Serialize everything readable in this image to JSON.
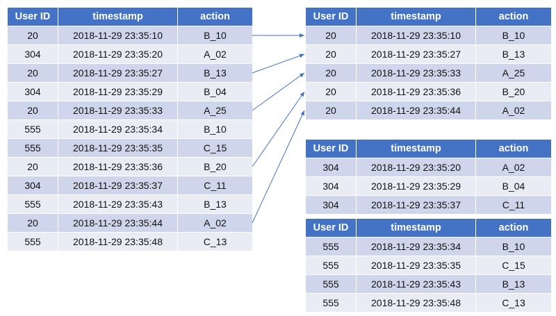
{
  "headers": [
    "User ID",
    "timestamp",
    "action"
  ],
  "tables": [
    {
      "rows": [
        [
          "20",
          "2018-11-29 23:35:10",
          "B_10"
        ],
        [
          "304",
          "2018-11-29 23:35:20",
          "A_02"
        ],
        [
          "20",
          "2018-11-29 23:35:27",
          "B_13"
        ],
        [
          "304",
          "2018-11-29 23:35:29",
          "B_04"
        ],
        [
          "20",
          "2018-11-29 23:35:33",
          "A_25"
        ],
        [
          "555",
          "2018-11-29 23:35:34",
          "B_10"
        ],
        [
          "555",
          "2018-11-29 23:35:35",
          "C_15"
        ],
        [
          "20",
          "2018-11-29 23:35:36",
          "B_20"
        ],
        [
          "304",
          "2018-11-29 23:35:37",
          "C_11"
        ],
        [
          "555",
          "2018-11-29 23:35:43",
          "B_13"
        ],
        [
          "20",
          "2018-11-29 23:35:44",
          "A_02"
        ],
        [
          "555",
          "2018-11-29 23:35:48",
          "C_13"
        ]
      ]
    },
    {
      "rows": [
        [
          "20",
          "2018-11-29 23:35:10",
          "B_10"
        ],
        [
          "20",
          "2018-11-29 23:35:27",
          "B_13"
        ],
        [
          "20",
          "2018-11-29 23:35:33",
          "A_25"
        ],
        [
          "20",
          "2018-11-29 23:35:36",
          "B_20"
        ],
        [
          "20",
          "2018-11-29 23:35:44",
          "A_02"
        ]
      ]
    },
    {
      "rows": [
        [
          "304",
          "2018-11-29 23:35:20",
          "A_02"
        ],
        [
          "304",
          "2018-11-29 23:35:29",
          "B_04"
        ],
        [
          "304",
          "2018-11-29 23:35:37",
          "C_11"
        ]
      ]
    },
    {
      "rows": [
        [
          "555",
          "2018-11-29 23:35:34",
          "B_10"
        ],
        [
          "555",
          "2018-11-29 23:35:35",
          "C_15"
        ],
        [
          "555",
          "2018-11-29 23:35:43",
          "B_13"
        ],
        [
          "555",
          "2018-11-29 23:35:48",
          "C_13"
        ]
      ]
    }
  ],
  "colors": {
    "header": "#4472C4",
    "row_dark": "#CFD5EA",
    "row_light": "#E9EBF5",
    "arrow": "#4472C4"
  },
  "arrows": [
    {
      "from_row": 0,
      "to_row": 0
    },
    {
      "from_row": 2,
      "to_row": 1
    },
    {
      "from_row": 4,
      "to_row": 2
    },
    {
      "from_row": 7,
      "to_row": 3
    },
    {
      "from_row": 10,
      "to_row": 4
    }
  ]
}
